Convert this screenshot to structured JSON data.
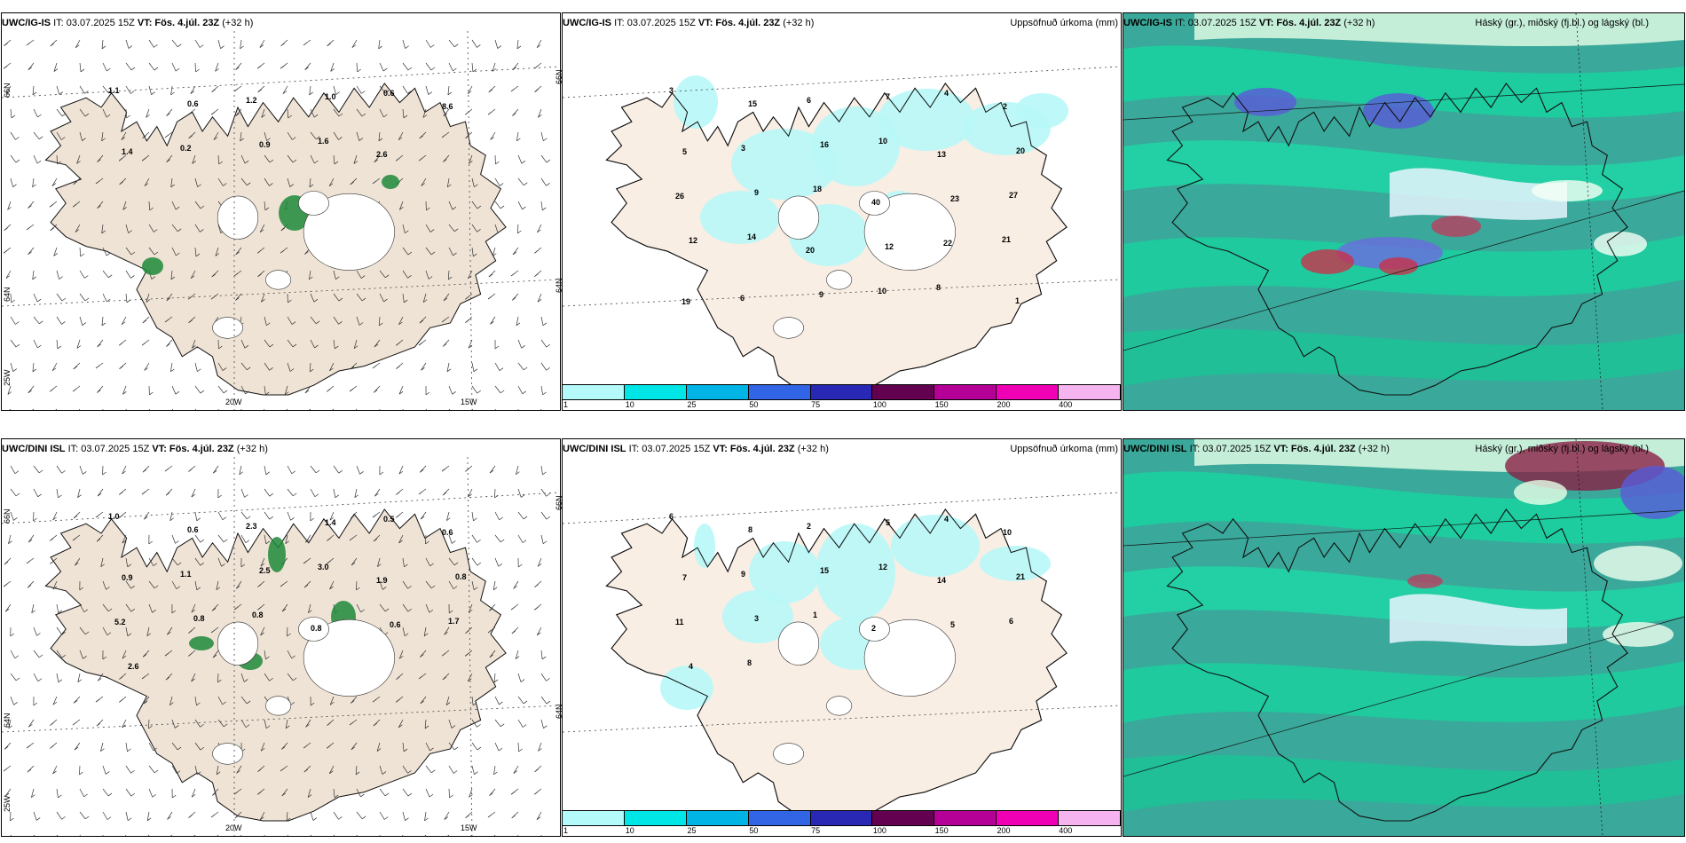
{
  "panels": [
    {
      "model": "UWC/IG-IS",
      "it": "IT: 03.07.2025 15Z",
      "vt": "VT: Fös. 4.júl. 23Z",
      "lead": "(+32 h)",
      "grid_labels": {
        "lat1": "66N",
        "lat2": "64N",
        "lon1": "25W",
        "lon2": "20W",
        "lon3": "15W"
      },
      "values": [
        "1.1",
        "0.6",
        "1.2",
        "1.0",
        "0.6",
        "8.6",
        "1.4",
        "0.2",
        "0.9",
        "1.6",
        "2.6"
      ]
    },
    {
      "model": "UWC/IG-IS",
      "it": "IT: 03.07.2025 15Z",
      "vt": "VT: Fös. 4.júl. 23Z",
      "lead": "(+32 h)",
      "right_title": "Uppsöfnuð úrkoma (mm)",
      "grid_labels": {
        "lat1": "66N",
        "lat2": "64N"
      },
      "values": [
        "3",
        "15",
        "6",
        "7",
        "4",
        "2",
        "5",
        "3",
        "16",
        "10",
        "13",
        "20",
        "26",
        "9",
        "18",
        "40",
        "23",
        "27",
        "12",
        "14",
        "20",
        "12",
        "22",
        "21",
        "19",
        "6",
        "9",
        "10",
        "8",
        "1"
      ]
    },
    {
      "model": "UWC/IG-IS",
      "it": "IT: 03.07.2025 15Z",
      "vt": "VT: Fös. 4.júl. 23Z",
      "lead": "(+32 h)",
      "right_title": "Háský (gr.), miðský (fj.bl.) og lágský (bl.)"
    },
    {
      "model": "UWC/DINI ISL",
      "it": "IT: 03.07.2025 15Z",
      "vt": "VT: Fös. 4.júl. 23Z",
      "lead": "(+32 h)",
      "grid_labels": {
        "lat1": "66N",
        "lat2": "64N",
        "lon1": "25W",
        "lon2": "20W",
        "lon3": "15W"
      },
      "values": [
        "1.0",
        "0.6",
        "2.3",
        "1.4",
        "0.5",
        "0.6",
        "0.9",
        "1.1",
        "2.5",
        "3.0",
        "1.9",
        "0.8",
        "5.2",
        "0.8",
        "0.8",
        "0.8",
        "0.6",
        "1.7",
        "2.6"
      ]
    },
    {
      "model": "UWC/DINI ISL",
      "it": "IT: 03.07.2025 15Z",
      "vt": "VT: Fös. 4.júl. 23Z",
      "lead": "(+32 h)",
      "right_title": "Uppsöfnuð úrkoma (mm)",
      "grid_labels": {
        "lat1": "66N",
        "lat2": "64N"
      },
      "values": [
        "6",
        "8",
        "2",
        "5",
        "4",
        "10",
        "7",
        "9",
        "15",
        "12",
        "14",
        "21",
        "11",
        "3",
        "1",
        "2",
        "5",
        "6",
        "4",
        "8"
      ]
    },
    {
      "model": "UWC/DINI ISL",
      "it": "IT: 03.07.2025 15Z",
      "vt": "VT: Fös. 4.júl. 23Z",
      "lead": "(+32 h)",
      "right_title": "Háský (gr.), miðský (fj.bl.) og lágský (bl.)"
    }
  ],
  "colorbar": {
    "labels": [
      "1",
      "10",
      "25",
      "50",
      "75",
      "100",
      "150",
      "200",
      "400"
    ],
    "colors": [
      "#b4fafa",
      "#00e6e6",
      "#00b4e6",
      "#3264e6",
      "#2828b4",
      "#640050",
      "#b40096",
      "#f000b4",
      "#f5b4f0"
    ]
  },
  "colors": {
    "land": "#efe3d5",
    "land_precip": "#f9eee4",
    "ice": "#ffffff",
    "precip": "#b8f7f7",
    "cloud_base": "#3aa89a"
  }
}
